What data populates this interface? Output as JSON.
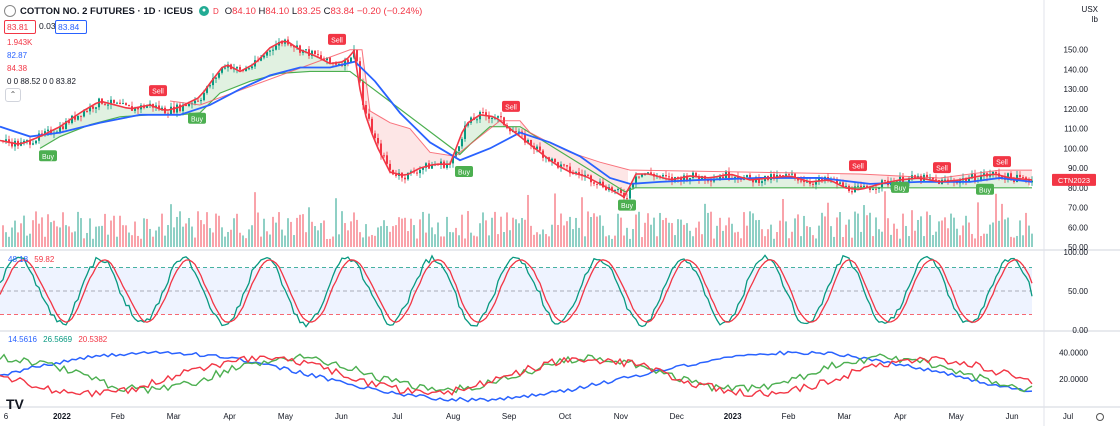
{
  "header": {
    "symbol": "COTTON NO. 2 FUTURES · 1D · ICEUS",
    "interval_badge": "D",
    "o_label": "O",
    "o_value": "84.10",
    "h_label": "H",
    "h_value": "84.10",
    "l_label": "L",
    "l_value": "83.25",
    "c_label": "C",
    "c_value": "83.84",
    "change": "−0.20 (−0.24%)",
    "bid": "83.81",
    "spread": "0.03",
    "ask": "83.84"
  },
  "indicators": {
    "volume": "1.943K",
    "ma1": "82.87",
    "ma2": "84.38",
    "pattern": "0 0 88.52 0 0 83.82"
  },
  "axis": {
    "currency": "USX",
    "unit": "lb"
  },
  "colors": {
    "up": "#089981",
    "down": "#f23645",
    "price_line": "#f23645",
    "ma_line": "#2962ff",
    "stop_line": "#4caf50",
    "band_fill": "#c8e6c9",
    "band_fill_red": "#fbd5d5"
  },
  "chart_data": [
    {
      "type": "candlestick",
      "title": "COTTON NO. 2 FUTURES · 1D · ICEUS",
      "ylabel": "USX / lb",
      "ylim": [
        50,
        160
      ],
      "y_ticks": [
        50,
        60,
        70,
        80,
        90,
        100,
        110,
        120,
        130,
        140,
        150
      ],
      "x_ticks": [
        "6",
        "2022",
        "Feb",
        "Mar",
        "Apr",
        "May",
        "Jun",
        "Jul",
        "Aug",
        "Sep",
        "Oct",
        "Nov",
        "Dec",
        "2023",
        "Feb",
        "Mar",
        "Apr",
        "May",
        "Jun",
        "Jul"
      ],
      "last_label": "CTN2023",
      "close_path": [
        [
          0,
          104
        ],
        [
          20,
          102
        ],
        [
          40,
          106
        ],
        [
          60,
          111
        ],
        [
          80,
          118
        ],
        [
          100,
          124
        ],
        [
          115,
          122
        ],
        [
          130,
          120
        ],
        [
          150,
          122
        ],
        [
          165,
          119
        ],
        [
          180,
          121
        ],
        [
          200,
          126
        ],
        [
          210,
          133
        ],
        [
          225,
          143
        ],
        [
          240,
          139
        ],
        [
          255,
          143
        ],
        [
          270,
          151
        ],
        [
          285,
          155
        ],
        [
          300,
          150
        ],
        [
          315,
          147
        ],
        [
          330,
          143
        ],
        [
          345,
          144
        ],
        [
          355,
          150
        ],
        [
          362,
          122
        ],
        [
          375,
          103
        ],
        [
          390,
          88
        ],
        [
          405,
          86
        ],
        [
          420,
          90
        ],
        [
          435,
          92
        ],
        [
          450,
          92
        ],
        [
          465,
          112
        ],
        [
          480,
          117
        ],
        [
          495,
          116
        ],
        [
          510,
          110
        ],
        [
          525,
          104
        ],
        [
          540,
          98
        ],
        [
          555,
          92
        ],
        [
          570,
          88
        ],
        [
          585,
          86
        ],
        [
          600,
          82
        ],
        [
          615,
          78
        ],
        [
          625,
          75
        ],
        [
          635,
          87
        ],
        [
          650,
          87
        ],
        [
          670,
          84
        ],
        [
          690,
          86
        ],
        [
          710,
          85
        ],
        [
          730,
          87
        ],
        [
          750,
          84
        ],
        [
          770,
          85
        ],
        [
          790,
          86
        ],
        [
          810,
          83
        ],
        [
          830,
          84
        ],
        [
          845,
          80
        ],
        [
          860,
          79
        ],
        [
          880,
          82
        ],
        [
          900,
          84
        ],
        [
          920,
          85
        ],
        [
          940,
          83
        ],
        [
          960,
          84
        ],
        [
          980,
          86
        ],
        [
          995,
          87
        ],
        [
          1010,
          85
        ],
        [
          1032,
          84
        ]
      ],
      "ma_path": [
        [
          0,
          111
        ],
        [
          30,
          106
        ],
        [
          60,
          108
        ],
        [
          100,
          113
        ],
        [
          140,
          117
        ],
        [
          180,
          117
        ],
        [
          210,
          122
        ],
        [
          240,
          130
        ],
        [
          270,
          137
        ],
        [
          300,
          141
        ],
        [
          330,
          141
        ],
        [
          355,
          144
        ],
        [
          375,
          134
        ],
        [
          400,
          118
        ],
        [
          430,
          103
        ],
        [
          460,
          94
        ],
        [
          490,
          100
        ],
        [
          520,
          108
        ],
        [
          550,
          103
        ],
        [
          580,
          96
        ],
        [
          610,
          85
        ],
        [
          630,
          82
        ],
        [
          660,
          83
        ],
        [
          700,
          84
        ],
        [
          760,
          85
        ],
        [
          820,
          85
        ],
        [
          870,
          82
        ],
        [
          920,
          83
        ],
        [
          970,
          83
        ],
        [
          1000,
          85
        ],
        [
          1032,
          83
        ]
      ],
      "stop_path": [
        [
          40,
          100
        ],
        [
          60,
          106
        ],
        [
          90,
          112
        ],
        [
          120,
          116
        ],
        [
          150,
          117
        ],
        [
          180,
          117
        ],
        [
          200,
          118
        ],
        [
          220,
          128
        ],
        [
          250,
          134
        ],
        [
          280,
          138
        ],
        [
          310,
          139
        ],
        [
          350,
          139
        ],
        [
          460,
          97
        ],
        [
          470,
          102
        ],
        [
          490,
          111
        ],
        [
          520,
          111
        ],
        [
          625,
          78
        ],
        [
          635,
          80
        ],
        [
          660,
          80
        ],
        [
          700,
          80
        ],
        [
          760,
          80
        ],
        [
          820,
          80
        ],
        [
          850,
          80
        ],
        [
          1032,
          80
        ]
      ],
      "resist_path": [
        [
          170,
          124
        ],
        [
          200,
          122
        ],
        [
          350,
          150
        ],
        [
          362,
          150
        ],
        [
          370,
          119
        ],
        [
          390,
          113
        ],
        [
          410,
          110
        ],
        [
          430,
          98
        ],
        [
          455,
          96
        ],
        [
          500,
          114
        ],
        [
          520,
          114
        ],
        [
          530,
          108
        ],
        [
          545,
          104
        ],
        [
          570,
          98
        ],
        [
          600,
          93
        ],
        [
          630,
          89
        ],
        [
          860,
          87
        ],
        [
          940,
          85
        ],
        [
          1000,
          89
        ],
        [
          1032,
          89
        ]
      ],
      "signals": [
        {
          "label": "Sell",
          "x": 158,
          "y": 129
        },
        {
          "label": "Buy",
          "x": 48,
          "y": 96
        },
        {
          "label": "Buy",
          "x": 197,
          "y": 115
        },
        {
          "label": "Sell",
          "x": 337,
          "y": 155
        },
        {
          "label": "Buy",
          "x": 464,
          "y": 88
        },
        {
          "label": "Sell",
          "x": 511,
          "y": 121
        },
        {
          "label": "Buy",
          "x": 627,
          "y": 71
        },
        {
          "label": "Sell",
          "x": 858,
          "y": 91
        },
        {
          "label": "Buy",
          "x": 900,
          "y": 80
        },
        {
          "label": "Sell",
          "x": 942,
          "y": 90
        },
        {
          "label": "Buy",
          "x": 985,
          "y": 79
        },
        {
          "label": "Sell",
          "x": 1002,
          "y": 93
        }
      ]
    },
    {
      "type": "line",
      "title": "Stochastic",
      "legend_values": [
        "48.18",
        "59.82"
      ],
      "ylim": [
        0,
        100
      ],
      "y_ticks": [
        0,
        50,
        100
      ],
      "y_tick_labels": [
        "0.00",
        "50.00",
        "100.00"
      ],
      "bands": [
        80,
        20
      ]
    },
    {
      "type": "line",
      "title": "DMI",
      "legend_values": [
        "14.5616",
        "26.5669",
        "20.5382"
      ],
      "ylim": [
        0,
        55
      ],
      "y_ticks": [
        20,
        40
      ],
      "y_tick_labels": [
        "20.0000",
        "40.0000"
      ]
    }
  ]
}
